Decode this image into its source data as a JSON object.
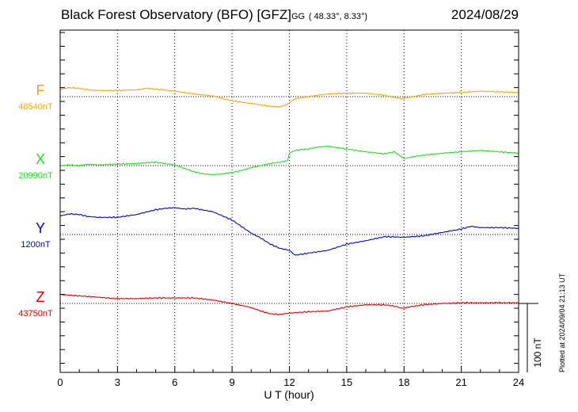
{
  "header": {
    "station": "Black Forest Observatory (BFO)",
    "institute": "[GFZ]",
    "coord_prefix": "GG",
    "coords": "( 48.33°,   8.33°)",
    "date": "2024/08/29"
  },
  "footer": {
    "plotted": "Plotted at 2024/09/04 21:13 UT",
    "scale_label": "100 nT"
  },
  "colors": {
    "F": "#f5a800",
    "X": "#22dd22",
    "Y": "#0000dd",
    "Z": "#dd0000"
  },
  "chart_data": {
    "type": "line",
    "title": "Black Forest Observatory (BFO) [GFZ]",
    "xlabel": "U T (hour)",
    "ylabel": "",
    "xlim": [
      0,
      24
    ],
    "xticks": [
      0,
      3,
      6,
      9,
      12,
      15,
      18,
      21,
      24
    ],
    "scale_bar_nT": 100,
    "series": [
      {
        "name": "F",
        "baseline_label": "48540nT",
        "baseline_nT": 48540,
        "x": [
          0,
          0.5,
          1,
          1.5,
          2,
          3,
          4,
          4.5,
          5,
          6,
          7,
          8,
          9,
          10,
          10.5,
          11,
          11.5,
          11.9,
          12.3,
          13,
          14,
          15,
          16,
          17,
          17.5,
          17.9,
          18.3,
          19,
          20,
          21,
          22,
          23,
          24
        ],
        "y": [
          11,
          13,
          12,
          10,
          9,
          9,
          10,
          12,
          11,
          8,
          4,
          1,
          -6,
          -10,
          -12,
          -14,
          -15,
          -11,
          -3,
          0,
          4,
          5,
          5,
          2,
          -1,
          -3,
          -1,
          3,
          5,
          6,
          8,
          7,
          6
        ]
      },
      {
        "name": "X",
        "baseline_label": "20990nT",
        "baseline_nT": 20990,
        "x": [
          0,
          0.5,
          1,
          1.5,
          2,
          3,
          4,
          5,
          6,
          7,
          7.5,
          8,
          8.5,
          9,
          9.5,
          10,
          10.5,
          11,
          11.5,
          11.9,
          12,
          12.3,
          12.5,
          13,
          13.5,
          14,
          15,
          16,
          17,
          17.5,
          18,
          18.5,
          19,
          20,
          21,
          22,
          23,
          24
        ],
        "y": [
          0,
          1,
          0,
          2,
          1,
          2,
          3,
          5,
          1,
          -9,
          -12,
          -13,
          -12,
          -10,
          -7,
          -3,
          0,
          3,
          5,
          7,
          18,
          22,
          23,
          24,
          27,
          28,
          24,
          20,
          17,
          20,
          10,
          13,
          15,
          18,
          20,
          22,
          20,
          18
        ]
      },
      {
        "name": "Y",
        "baseline_label": "1200nT",
        "baseline_nT": 1200,
        "x": [
          0,
          0.5,
          1,
          1.5,
          2,
          3,
          4,
          5,
          5.5,
          6,
          6.5,
          7,
          8,
          9,
          10,
          10.5,
          11,
          11.5,
          12,
          12.3,
          13,
          14,
          15,
          16,
          17,
          18,
          19,
          20,
          21,
          21.5,
          22,
          23,
          24
        ],
        "y": [
          27,
          30,
          29,
          26,
          25,
          25,
          29,
          36,
          38,
          39,
          37,
          38,
          33,
          21,
          2,
          -5,
          -14,
          -20,
          -23,
          -30,
          -27,
          -23,
          -14,
          -9,
          -3,
          -4,
          -2,
          3,
          8,
          12,
          10,
          10,
          9
        ]
      },
      {
        "name": "Z",
        "baseline_label": "43750nT",
        "baseline_nT": 43750,
        "x": [
          0,
          1,
          2,
          3,
          4,
          5,
          6,
          7,
          8,
          9,
          10,
          10.5,
          11,
          11.5,
          12,
          12.5,
          13,
          14,
          15,
          16,
          17,
          17.5,
          17.9,
          18.3,
          19,
          20,
          21,
          22,
          23,
          24
        ],
        "y": [
          13,
          11,
          9,
          7,
          7,
          8,
          8,
          8,
          5,
          0,
          -6,
          -11,
          -15,
          -16,
          -14,
          -13,
          -12,
          -11,
          -5,
          -2,
          -2,
          -4,
          -7,
          -5,
          -2,
          0,
          1,
          1,
          1,
          1
        ]
      }
    ]
  }
}
